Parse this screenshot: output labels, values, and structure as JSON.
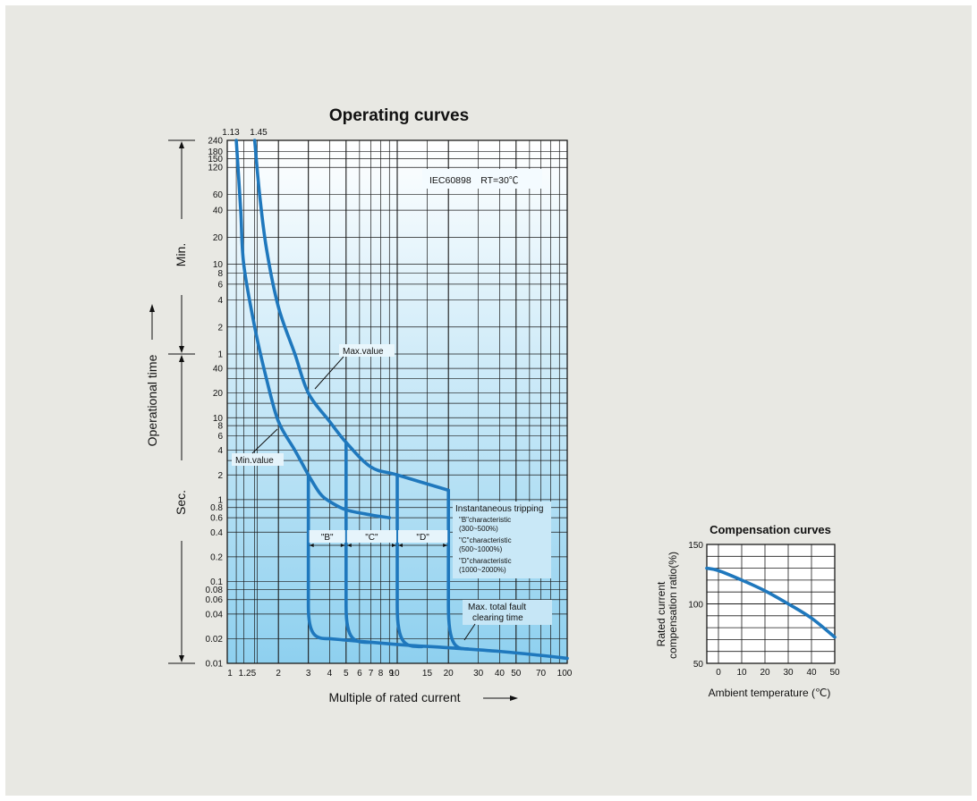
{
  "colors": {
    "curve": "#1f78bd",
    "grid": "#1a1a1a",
    "panel_bg": "#e8e8e3",
    "plot_grad_top": "#ffffff",
    "plot_grad_bottom": "#8ed0ef"
  },
  "chart_data": [
    {
      "type": "line",
      "title": "Operating curves",
      "xlabel": "Multiple of rated current",
      "ylabel": "Operational time",
      "x_scale": "log",
      "y_scale": "log",
      "xlim": [
        1,
        100
      ],
      "x_ticks": [
        "1",
        "1.25",
        "2",
        "3",
        "4",
        "5",
        "6",
        "7",
        "8",
        "9",
        "10",
        "15",
        "20",
        "30",
        "40",
        "50",
        "70",
        "100"
      ],
      "y_ticks_min": [
        "240",
        "180",
        "150",
        "120",
        "60",
        "40",
        "20",
        "10",
        "8",
        "6",
        "4",
        "2",
        "1"
      ],
      "y_ticks_sec": [
        "40",
        "20",
        "10",
        "8",
        "6",
        "4",
        "2",
        "1",
        "0.8",
        "0.6",
        "0.4",
        "0.2",
        "0.1",
        "0.08",
        "0.06",
        "0.04",
        "0.02",
        "0.01"
      ],
      "y_section_labels": [
        "Min.",
        "Sec."
      ],
      "top_markers": [
        "1.13",
        "1.45"
      ],
      "standard_note": "IEC60898　RT=30℃",
      "annotations": {
        "max_value": "Max.value",
        "min_value": "Min.value",
        "instant_title": "Instantaneous tripping",
        "instant_lines": [
          "\"B\"characteristic",
          "(300~500%)",
          "\"C\"characteristic",
          "(500~1000%)",
          "\"D\"characteristic",
          "(1000~2000%)"
        ],
        "fault_line1": "Max. total fault",
        "fault_line2": "clearing time",
        "zone_b": "\"B\"",
        "zone_c": "\"C\"",
        "zone_d": "\"D\""
      },
      "series": [
        {
          "unit_note": "min curve",
          "x": [
            1.13,
            1.2,
            1.25,
            1.45,
            1.7,
            2,
            2.5,
            3
          ],
          "y_seconds": [
            14400,
            2400,
            600,
            120,
            30,
            9,
            4,
            2
          ]
        },
        {
          "unit_note": "max curve",
          "x": [
            1.45,
            1.55,
            1.7,
            2,
            2.5,
            3,
            4,
            5,
            7,
            10,
            20
          ],
          "y_seconds": [
            14400,
            3600,
            900,
            200,
            60,
            20,
            9,
            5,
            2.5,
            2,
            1.3
          ]
        }
      ]
    },
    {
      "type": "line",
      "title": "Compensation curves",
      "xlabel": "Ambient temperature (℃)",
      "ylabel_line1": "Rated current",
      "ylabel_line2": "compensation ratio(%)",
      "x_ticks": [
        "0",
        "10",
        "20",
        "30",
        "40",
        "50"
      ],
      "y_ticks": [
        "150",
        "100",
        "50"
      ],
      "xlim": [
        -5,
        50
      ],
      "ylim": [
        50,
        150
      ],
      "x": [
        -5,
        0,
        10,
        20,
        30,
        40,
        50
      ],
      "y": [
        130,
        128,
        120,
        111,
        100,
        88,
        72
      ]
    }
  ]
}
